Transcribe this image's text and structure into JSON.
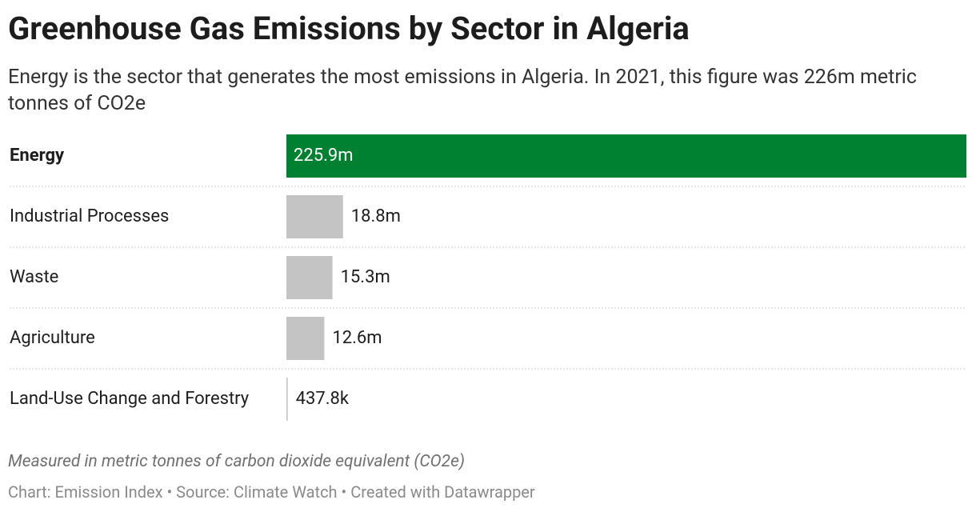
{
  "chart_data": {
    "type": "bar",
    "title": "Greenhouse Gas Emissions by Sector in Algeria",
    "subtitle": "Energy is the sector that generates the most emissions in Algeria. In 2021, this figure was 226m metric tonnes of CO2e",
    "categories": [
      "Energy",
      "Industrial Processes",
      "Waste",
      "Agriculture",
      "Land-Use Change and Forestry"
    ],
    "values": [
      225900000,
      18800000,
      15300000,
      12600000,
      437800
    ],
    "value_labels": [
      "225.9m",
      "18.8m",
      "15.3m",
      "12.6m",
      "437.8k"
    ],
    "colors": [
      "#008031",
      "#c4c4c4",
      "#c4c4c4",
      "#c4c4c4",
      "#c4c4c4"
    ],
    "highlight_color": "#008031",
    "xlim": [
      0,
      225900000
    ],
    "notes": "Measured in metric tonnes of carbon dioxide equivalent (CO2e)",
    "source": "Chart: Emission Index • Source: Climate Watch • Created with Datawrapper"
  }
}
